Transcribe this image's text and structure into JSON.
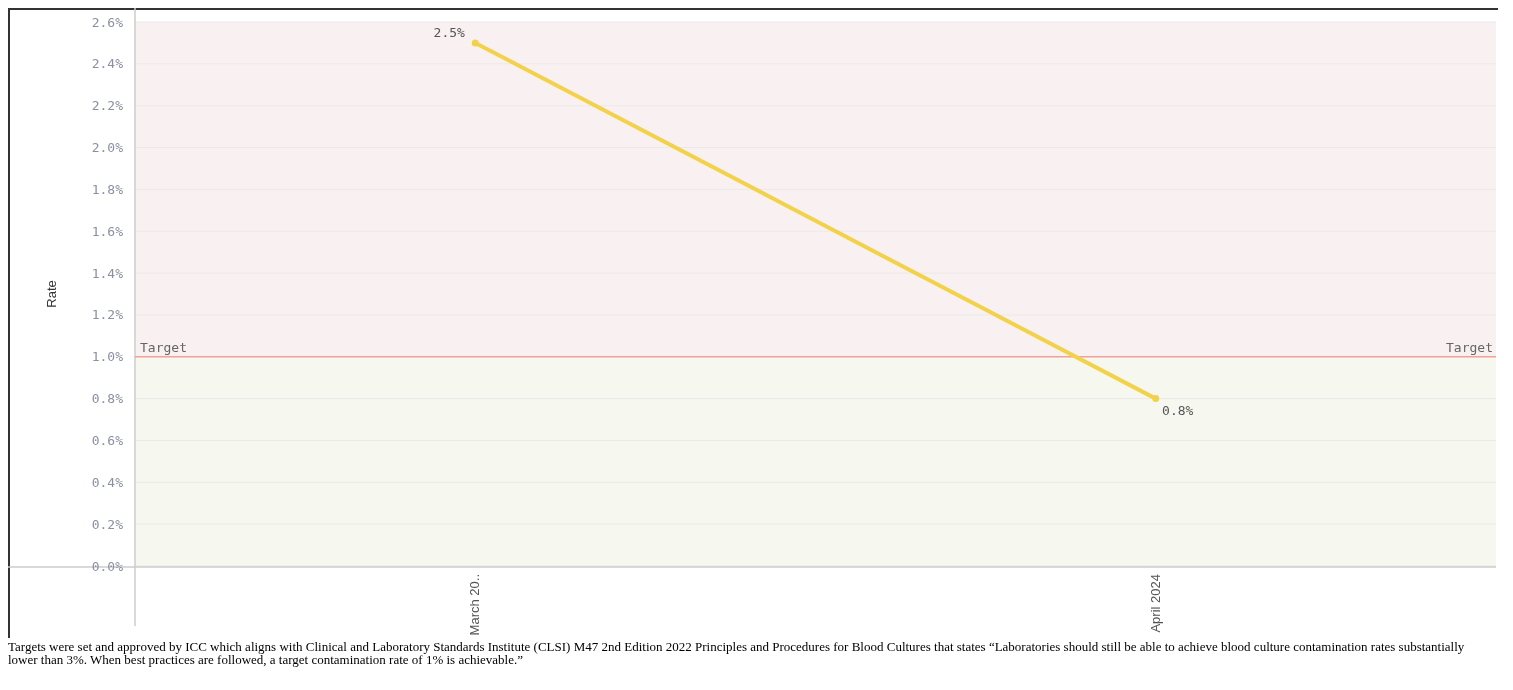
{
  "chart_data": {
    "type": "line",
    "ylabel": "Rate",
    "categories": [
      "March 20..",
      "April 2024"
    ],
    "series": [
      {
        "color": "#f2d24a",
        "values": [
          2.5,
          0.8
        ],
        "value_labels": [
          "2.5%",
          "0.8%"
        ]
      }
    ],
    "ylim": [
      0,
      2.6
    ],
    "yticks": [
      {
        "value": 0,
        "label": "0.0%"
      },
      {
        "value": 0.2,
        "label": "0.2%"
      },
      {
        "value": 0.4,
        "label": "0.4%"
      },
      {
        "value": 0.6,
        "label": "0.6%"
      },
      {
        "value": 0.8,
        "label": "0.8%"
      },
      {
        "value": 1,
        "label": "1.0%"
      },
      {
        "value": 1.2,
        "label": "1.2%"
      },
      {
        "value": 1.4,
        "label": "1.4%"
      },
      {
        "value": 1.6,
        "label": "1.6%"
      },
      {
        "value": 1.8,
        "label": "1.8%"
      },
      {
        "value": 2,
        "label": "2.0%"
      },
      {
        "value": 2.2,
        "label": "2.2%"
      },
      {
        "value": 2.4,
        "label": "2.4%"
      },
      {
        "value": 2.6,
        "label": "2.6%"
      }
    ],
    "grid": "y",
    "marker": "circle",
    "line_style": "solid",
    "bands": [
      {
        "axis": "y",
        "from": 1,
        "to": 2.6,
        "color": "#f9f1f1"
      },
      {
        "axis": "y",
        "from": 0,
        "to": 1,
        "color": "#f6f8f0"
      }
    ],
    "ref_lines": [
      {
        "axis": "y",
        "value": 1,
        "label": "Target",
        "color": "#f4a09a"
      }
    ],
    "annotations": [
      "Targets were set and approved by ICC which aligns with Clinical and Laboratory Standards Institute (CLSI) M47 2nd Edition 2022 Principles and Procedures for Blood Cultures that states “Laboratories should still be able to achieve blood culture contamination rates substantially lower than 3%. When best practices are followed, a target contamination rate of 1% is achievable.”"
    ]
  }
}
